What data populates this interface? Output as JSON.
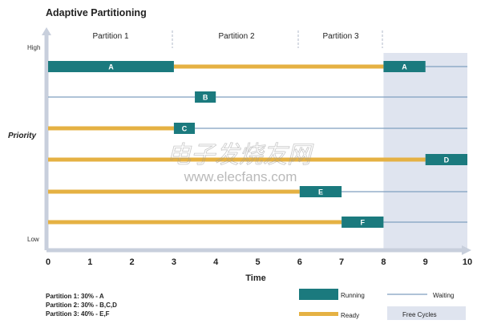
{
  "title": "Adaptive Partitioning",
  "colors": {
    "running": "#1b7a7e",
    "ready": "#e5b143",
    "waiting": "#7f9fbf",
    "free": "#dfe4ef",
    "axis": "#c8cfdc",
    "text": "#222222"
  },
  "partitions": [
    "Partition 1",
    "Partition 2",
    "Partition 3"
  ],
  "y_labels": {
    "high": "High",
    "priority": "Priority",
    "low": "Low"
  },
  "x_axis": {
    "label": "Time",
    "ticks": [
      "0",
      "1",
      "2",
      "3",
      "4",
      "5",
      "6",
      "7",
      "8",
      "9",
      "10"
    ]
  },
  "legend": {
    "partitions": [
      "Partition 1: 30% - A",
      "Partition 2: 30% - B,C,D",
      "Partition 3: 40% - E,F"
    ],
    "running": "Running",
    "ready": "Ready",
    "waiting": "Waiting",
    "free": "Free Cycles"
  },
  "tasks": [
    {
      "label": "A",
      "ready": [
        [
          3,
          8
        ]
      ],
      "running": [
        [
          0,
          3
        ],
        [
          8,
          9
        ]
      ],
      "waiting": [
        [
          9,
          10
        ]
      ]
    },
    {
      "label": "B",
      "ready": [],
      "running": [
        [
          3.5,
          4
        ]
      ],
      "waiting": [
        [
          0,
          3.5
        ],
        [
          4,
          10
        ]
      ]
    },
    {
      "label": "C",
      "ready": [
        [
          0,
          3
        ]
      ],
      "running": [
        [
          3,
          3.5
        ]
      ],
      "waiting": [
        [
          3.5,
          10
        ]
      ]
    },
    {
      "label": "D",
      "ready": [
        [
          0,
          9
        ]
      ],
      "running": [
        [
          9,
          10
        ]
      ],
      "waiting": []
    },
    {
      "label": "E",
      "ready": [
        [
          0,
          6
        ]
      ],
      "running": [
        [
          6,
          7
        ]
      ],
      "waiting": [
        [
          7,
          10
        ]
      ]
    },
    {
      "label": "F",
      "ready": [
        [
          0,
          7
        ]
      ],
      "running": [
        [
          7,
          8
        ]
      ],
      "waiting": [
        [
          8,
          10
        ]
      ]
    }
  ],
  "free_cycles": [
    8,
    10
  ],
  "watermark": {
    "cn": "电子发烧友网",
    "url": "www.elecfans.com"
  }
}
